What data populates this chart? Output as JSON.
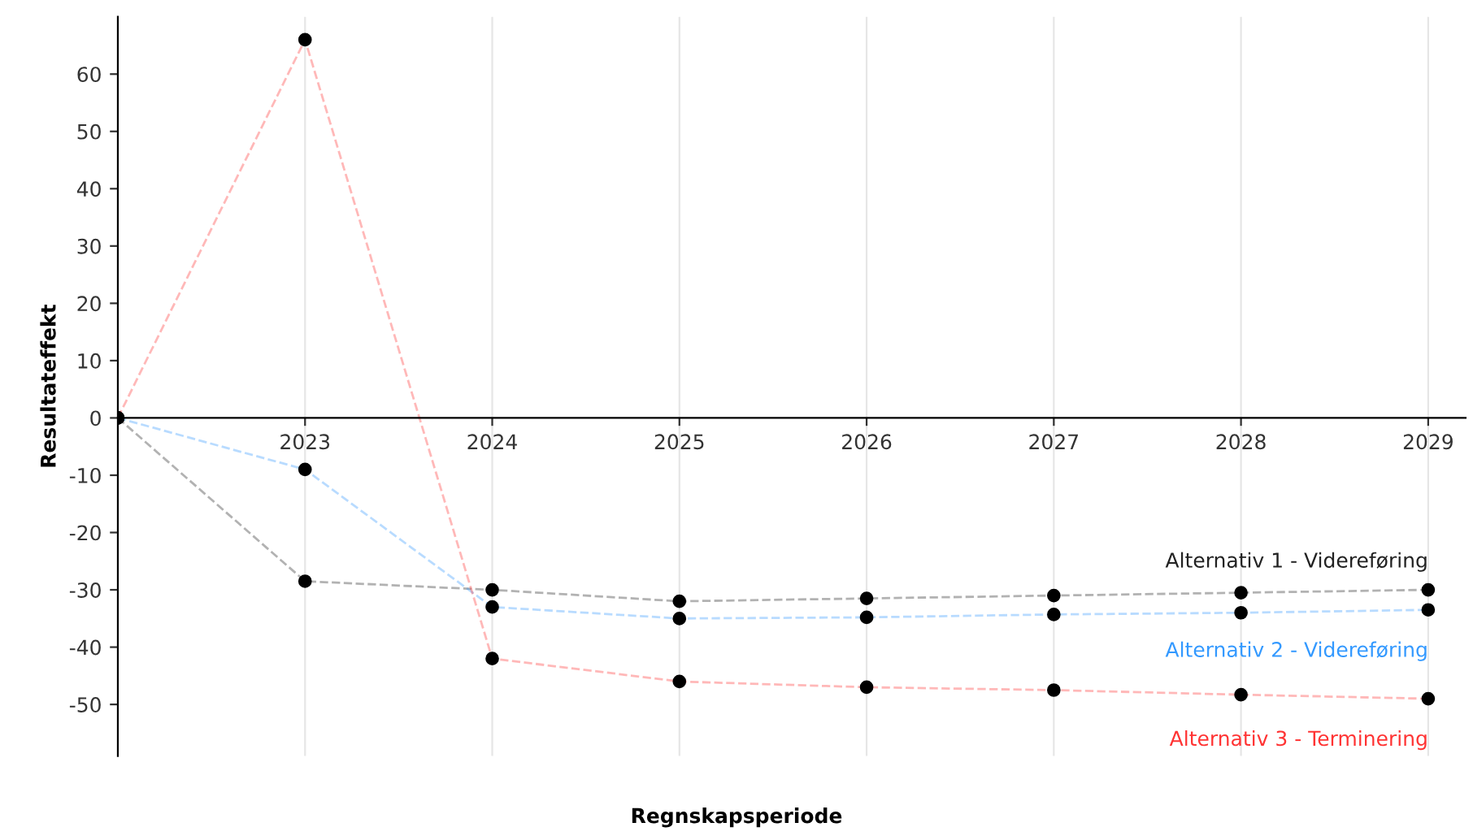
{
  "chart_data": {
    "type": "line",
    "xlabel": "Regnskapsperiode",
    "ylabel": "Resultateffekt",
    "x": [
      2022,
      2023,
      2024,
      2025,
      2026,
      2027,
      2028,
      2029
    ],
    "series": [
      {
        "name": "Alternativ 1 - Videreføring",
        "color": "#222222",
        "values": [
          0,
          -28.5,
          -30,
          -32,
          -31.5,
          -31,
          -30.5,
          -30
        ]
      },
      {
        "name": "Alternativ 2 - Videreføring",
        "color": "#3399ff",
        "values": [
          0,
          -9,
          -33,
          -35,
          -34.8,
          -34.3,
          -34,
          -33.5
        ]
      },
      {
        "name": "Alternativ 3 - Terminering",
        "color": "#ff3333",
        "values": [
          0,
          66,
          -42,
          -46,
          -47,
          -47.5,
          -48.3,
          -49
        ]
      }
    ],
    "xlim": [
      2022,
      2029.2
    ],
    "xticks": [
      2023,
      2024,
      2025,
      2026,
      2027,
      2028,
      2029
    ],
    "ylim": [
      -59,
      70
    ],
    "yticks": [
      -50,
      -40,
      -30,
      -20,
      -10,
      0,
      10,
      20,
      30,
      40,
      50,
      60
    ],
    "grid": "x",
    "marker": "circle",
    "line_style": "dashed"
  }
}
